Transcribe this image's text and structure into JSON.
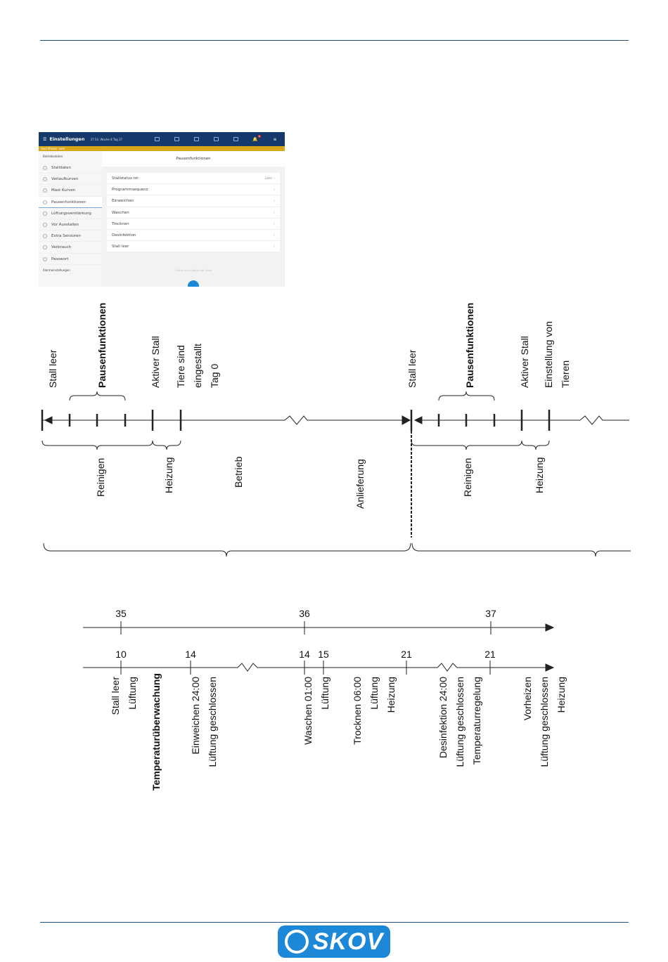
{
  "screenshot": {
    "title": "Einstellungen",
    "subtitle": "37.54, Woche 8 Tag 37",
    "alarm_count": "1",
    "status_bar": "Stall Modus: Leer",
    "sidebar": {
      "section1": "Betriebsdaten",
      "items": [
        "Stalldaten",
        "Verlaufkurven",
        "Mast Kurven",
        "Pausenfunktionen",
        "Lüftungsverstärkung",
        "Vor Ausstallen",
        "Extra Sensoren",
        "Verbrauch",
        "Passwort"
      ],
      "active": "Pausenfunktionen",
      "section2": "Alarmeinstellungen"
    },
    "main": {
      "header": "Pausenfunktionen",
      "rows": [
        {
          "label": "Stallstatus ist:",
          "value": "Leer"
        },
        {
          "label": "Programmsequenz",
          "value": ""
        },
        {
          "label": "Einweichen",
          "value": ""
        },
        {
          "label": "Waschen",
          "value": ""
        },
        {
          "label": "Trocknen",
          "value": ""
        },
        {
          "label": "Desinfektion",
          "value": ""
        },
        {
          "label": "Stall leer",
          "value": ""
        }
      ],
      "back_link": "Zurück zum Oberen der Seite"
    }
  },
  "diagram1": {
    "top_labels": [
      "Stall leer",
      "Pausenfunktionen",
      "Aktiver Stall",
      "Tiere sind\neingestallt\nTag 0",
      "Stall leer",
      "Pausenfunktionen",
      "Aktiver Stall",
      "Einstellung von\nTieren"
    ],
    "bottom_labels": [
      "Reinigen",
      "Heizung",
      "Betrieb",
      "Anlieferung",
      "Reinigen",
      "Heizung"
    ]
  },
  "diagram2": {
    "week_ticks": [
      "35",
      "36",
      "37"
    ],
    "day_ticks": [
      "10",
      "14",
      "14",
      "15",
      "21",
      "21"
    ],
    "labels": [
      "Stall leer",
      "Lüftung",
      "Temperaturüberwachung",
      "Einweichen 24:00",
      "Lüftung geschlossen",
      "Waschen 01:00",
      "Lüftung",
      "Trocknen 06:00",
      "Lüftung",
      "Heizung",
      "Desinfektion 24:00",
      "Lüftung geschlossen",
      "Temperaturregelung",
      "Vorheizen",
      "Lüftung geschlossen",
      "Heizung"
    ]
  },
  "footer": {
    "logo": "SKOV",
    "brand_color": "#1e88d8"
  }
}
